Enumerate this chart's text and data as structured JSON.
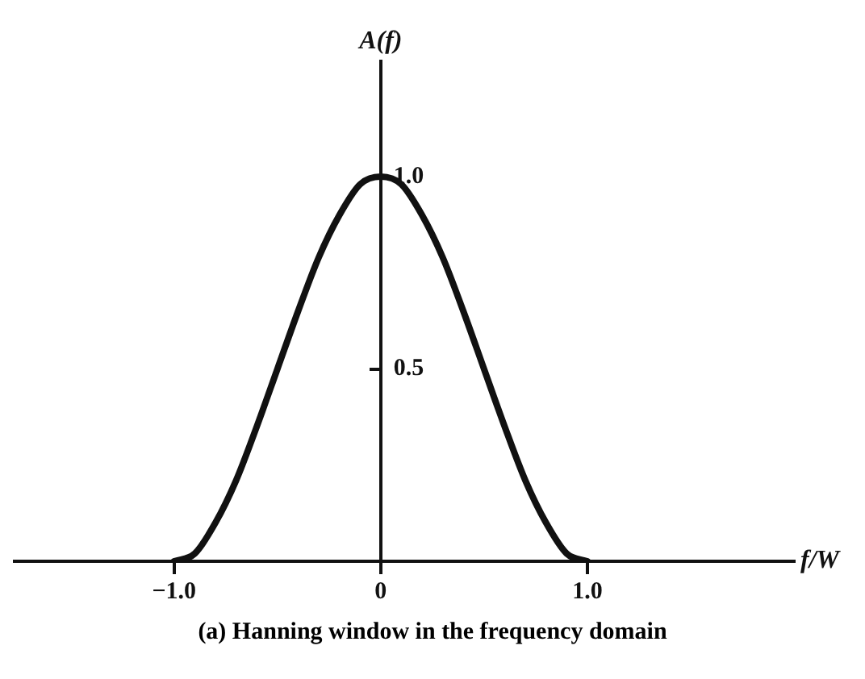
{
  "chart_data": {
    "type": "line",
    "xlabel": "f/W",
    "ylabel": "A(f)",
    "annotations": [
      "(a) Hanning window in the frequency domain"
    ],
    "x": [
      -1,
      -0.9,
      -0.8,
      -0.7,
      -0.6,
      -0.5,
      -0.4,
      -0.3,
      -0.2,
      -0.1,
      0,
      0.1,
      0.2,
      0.3,
      0.4,
      0.5,
      0.6,
      0.7,
      0.8,
      0.9,
      1
    ],
    "series": [
      {
        "color": "#111111",
        "values": [
          0,
          0.02,
          0.1,
          0.21,
          0.35,
          0.5,
          0.65,
          0.79,
          0.9,
          0.98,
          1,
          0.98,
          0.9,
          0.79,
          0.65,
          0.5,
          0.35,
          0.21,
          0.1,
          0.02,
          0
        ]
      }
    ],
    "xlim": [
      -1.78,
      2.0
    ],
    "ylim": [
      0,
      1.3
    ],
    "xticks": [
      {
        "value": -1,
        "label": "−1.0"
      },
      0,
      {
        "value": 1,
        "label": "1.0"
      }
    ],
    "yticks": [
      {
        "value": 0.5,
        "label": "0.5"
      },
      {
        "value": 1,
        "label": "1.0"
      }
    ],
    "grid": false,
    "legend": false,
    "marker": "none",
    "line_style": "solid"
  }
}
